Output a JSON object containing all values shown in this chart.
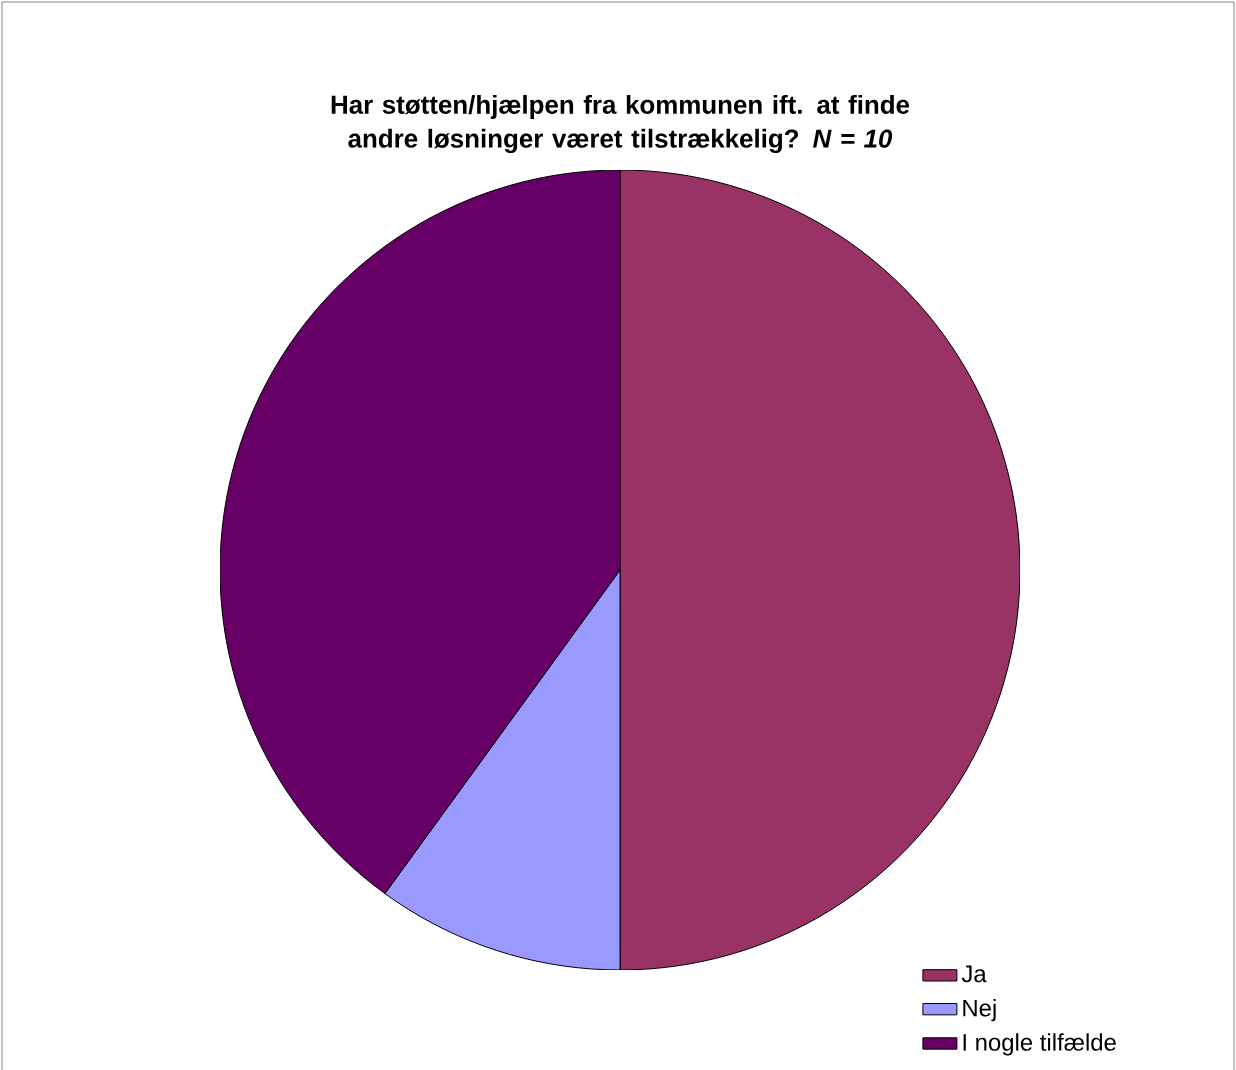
{
  "chart_data": {
    "type": "pie",
    "title": "Har støtten/hjælpen fra kommunen ift. at finde andre løsninger været tilstrækkelig? *N = 10*",
    "categories": [
      "Ja",
      "Nej",
      "I nogle tilfælde"
    ],
    "values": [
      50,
      10,
      40
    ],
    "colors": [
      "#993366",
      "#9999ff",
      "#660066"
    ],
    "legend": "bottom right"
  }
}
